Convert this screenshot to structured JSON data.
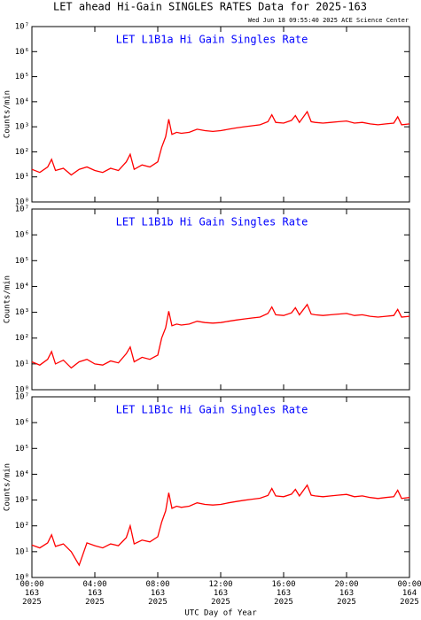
{
  "header": {
    "title": "LET ahead Hi-Gain SINGLES RATES Data for 2025-163",
    "timestamp": "Wed Jun 18 09:55:40 2025 ACE Science Center"
  },
  "chart_data": [
    {
      "type": "line",
      "title": "LET L1B1a Hi Gain Singles Rate",
      "title_color": "#0000ff",
      "ylabel": "Counts/min",
      "log": true,
      "x": [
        0,
        0.5,
        1,
        1.25,
        1.5,
        2,
        2.5,
        3,
        3.5,
        4,
        4.5,
        5,
        5.5,
        6,
        6.25,
        6.5,
        7,
        7.5,
        8,
        8.25,
        8.5,
        8.7,
        8.9,
        9.2,
        9.5,
        10,
        10.5,
        11,
        11.5,
        12,
        12.5,
        13,
        13.5,
        14,
        14.5,
        15,
        15.25,
        15.5,
        16,
        16.5,
        16.75,
        17,
        17.5,
        17.75,
        18,
        18.5,
        19,
        19.5,
        20,
        20.5,
        21,
        21.5,
        22,
        22.5,
        23,
        23.25,
        23.5,
        24
      ],
      "series": [
        {
          "color": "#ff0000",
          "values": [
            20,
            15,
            25,
            50,
            18,
            22,
            12,
            20,
            25,
            18,
            15,
            22,
            18,
            40,
            80,
            20,
            30,
            25,
            40,
            150,
            400,
            2000,
            500,
            600,
            550,
            600,
            800,
            700,
            650,
            700,
            800,
            900,
            1000,
            1100,
            1200,
            1600,
            3000,
            1500,
            1400,
            1800,
            2800,
            1500,
            4000,
            1600,
            1500,
            1400,
            1500,
            1600,
            1700,
            1400,
            1500,
            1300,
            1200,
            1300,
            1400,
            2500,
            1200,
            1300
          ]
        }
      ],
      "xlim": [
        0,
        24
      ],
      "xticks": [
        0,
        4,
        8,
        12,
        16,
        20,
        24
      ],
      "ylim": [
        1,
        10000000
      ],
      "yticks": [
        {
          "value": 1,
          "label": "10⁰"
        },
        {
          "value": 10,
          "label": "10¹"
        },
        {
          "value": 100,
          "label": "10²"
        },
        {
          "value": 1000,
          "label": "10³"
        },
        {
          "value": 10000,
          "label": "10⁴"
        },
        {
          "value": 100000,
          "label": "10⁵"
        },
        {
          "value": 1000000,
          "label": "10⁶"
        },
        {
          "value": 10000000,
          "label": "10⁷"
        }
      ]
    },
    {
      "type": "line",
      "title": "LET L1B1b Hi Gain Singles Rate",
      "title_color": "#0000ff",
      "ylabel": "Counts/min",
      "log": true,
      "x": [
        0,
        0.5,
        1,
        1.25,
        1.5,
        2,
        2.5,
        3,
        3.5,
        4,
        4.5,
        5,
        5.5,
        6,
        6.25,
        6.5,
        7,
        7.5,
        8,
        8.25,
        8.5,
        8.7,
        8.9,
        9.2,
        9.5,
        10,
        10.5,
        11,
        11.5,
        12,
        12.5,
        13,
        13.5,
        14,
        14.5,
        15,
        15.25,
        15.5,
        16,
        16.5,
        16.75,
        17,
        17.5,
        17.75,
        18,
        18.5,
        19,
        19.5,
        20,
        20.5,
        21,
        21.5,
        22,
        22.5,
        23,
        23.25,
        23.5,
        24
      ],
      "series": [
        {
          "color": "#ff0000",
          "values": [
            12,
            9,
            15,
            30,
            10,
            14,
            7,
            12,
            15,
            10,
            9,
            13,
            11,
            25,
            45,
            12,
            18,
            15,
            22,
            100,
            250,
            1100,
            300,
            350,
            320,
            350,
            450,
            400,
            380,
            400,
            450,
            500,
            550,
            600,
            650,
            900,
            1600,
            800,
            750,
            950,
            1500,
            800,
            2000,
            850,
            800,
            750,
            800,
            850,
            900,
            750,
            800,
            700,
            650,
            700,
            750,
            1300,
            650,
            700
          ]
        }
      ],
      "xlim": [
        0,
        24
      ],
      "xticks": [
        0,
        4,
        8,
        12,
        16,
        20,
        24
      ],
      "ylim": [
        1,
        10000000
      ],
      "yticks": [
        {
          "value": 1,
          "label": "10⁰"
        },
        {
          "value": 10,
          "label": "10¹"
        },
        {
          "value": 100,
          "label": "10²"
        },
        {
          "value": 1000,
          "label": "10³"
        },
        {
          "value": 10000,
          "label": "10⁴"
        },
        {
          "value": 100000,
          "label": "10⁵"
        },
        {
          "value": 1000000,
          "label": "10⁶"
        },
        {
          "value": 10000000,
          "label": "10⁷"
        }
      ]
    },
    {
      "type": "line",
      "title": "LET L1B1c Hi Gain Singles Rate",
      "title_color": "#0000ff",
      "ylabel": "Counts/min",
      "xlabel": "UTC Day of Year",
      "log": true,
      "x": [
        0,
        0.5,
        1,
        1.25,
        1.5,
        2,
        2.5,
        3,
        3.5,
        4,
        4.5,
        5,
        5.5,
        6,
        6.25,
        6.5,
        7,
        7.5,
        8,
        8.25,
        8.5,
        8.7,
        8.9,
        9.2,
        9.5,
        10,
        10.5,
        11,
        11.5,
        12,
        12.5,
        13,
        13.5,
        14,
        14.5,
        15,
        15.25,
        15.5,
        16,
        16.5,
        16.75,
        17,
        17.5,
        17.75,
        18,
        18.5,
        19,
        19.5,
        20,
        20.5,
        21,
        21.5,
        22,
        22.5,
        23,
        23.25,
        23.5,
        24
      ],
      "series": [
        {
          "color": "#ff0000",
          "values": [
            18,
            14,
            22,
            45,
            16,
            20,
            10,
            3,
            22,
            17,
            14,
            20,
            17,
            35,
            100,
            20,
            28,
            24,
            38,
            140,
            380,
            1900,
            480,
            580,
            520,
            580,
            780,
            680,
            640,
            680,
            780,
            880,
            980,
            1080,
            1180,
            1500,
            2800,
            1450,
            1350,
            1700,
            2600,
            1450,
            3800,
            1550,
            1450,
            1350,
            1450,
            1550,
            1650,
            1350,
            1450,
            1250,
            1150,
            1250,
            1350,
            2400,
            1150,
            1250
          ]
        }
      ],
      "xlim": [
        0,
        24
      ],
      "xticks": [
        {
          "value": 0,
          "label": "00:00\n163\n2025"
        },
        {
          "value": 4,
          "label": "04:00\n163\n2025"
        },
        {
          "value": 8,
          "label": "08:00\n163\n2025"
        },
        {
          "value": 12,
          "label": "12:00\n163\n2025"
        },
        {
          "value": 16,
          "label": "16:00\n163\n2025"
        },
        {
          "value": 20,
          "label": "20:00\n163\n2025"
        },
        {
          "value": 24,
          "label": "00:00\n164\n2025"
        }
      ],
      "ylim": [
        1,
        10000000
      ],
      "yticks": [
        {
          "value": 1,
          "label": "10⁰"
        },
        {
          "value": 10,
          "label": "10¹"
        },
        {
          "value": 100,
          "label": "10²"
        },
        {
          "value": 1000,
          "label": "10³"
        },
        {
          "value": 10000,
          "label": "10⁴"
        },
        {
          "value": 100000,
          "label": "10⁵"
        },
        {
          "value": 1000000,
          "label": "10⁶"
        },
        {
          "value": 10000000,
          "label": "10⁷"
        }
      ]
    }
  ]
}
